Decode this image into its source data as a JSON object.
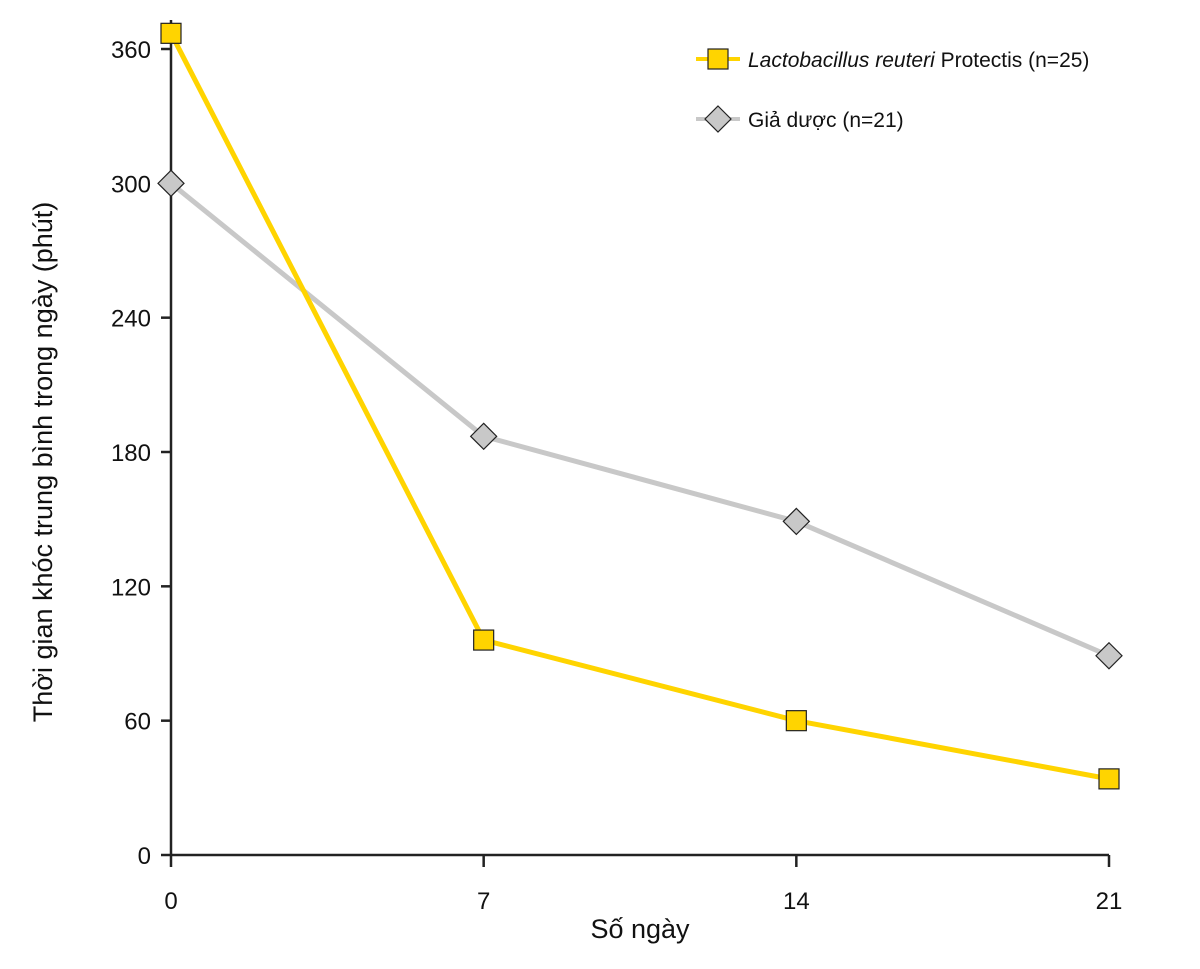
{
  "chart_data": {
    "type": "line",
    "xlabel": "Số ngày",
    "ylabel": "Thời gian khóc trung bình trong ngày (phút)",
    "x": [
      0,
      7,
      14,
      21
    ],
    "xticks": [
      "0",
      "7",
      "14",
      "21"
    ],
    "yticks": [
      "0",
      "60",
      "120",
      "180",
      "240",
      "300",
      "360"
    ],
    "xlim": [
      0,
      21
    ],
    "ylim": [
      0,
      360
    ],
    "grid": false,
    "legend_position": "top-right",
    "series": [
      {
        "name_italic": "Lactobacillus reuteri",
        "name_rest": " Protectis (n=25)",
        "marker": "square",
        "color": "#FFD400",
        "values": [
          367,
          96,
          60,
          34
        ]
      },
      {
        "name": "Giả dược (n=21)",
        "marker": "diamond",
        "color": "#C8C8C8",
        "values": [
          300,
          187,
          149,
          89
        ]
      }
    ]
  }
}
